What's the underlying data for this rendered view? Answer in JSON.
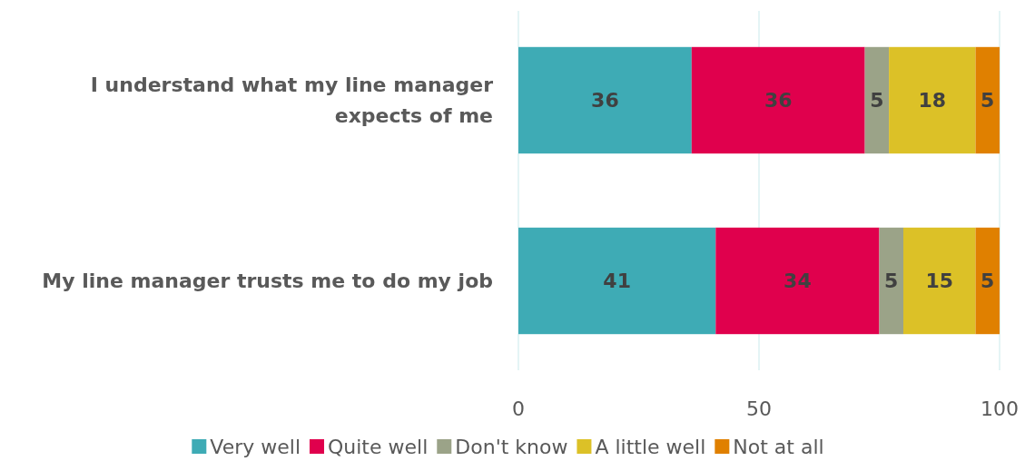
{
  "chart_data": {
    "type": "bar",
    "orientation": "horizontal",
    "stacked": true,
    "categories": [
      "I understand what my line manager expects of me",
      "My line manager trusts me to do my job"
    ],
    "series": [
      {
        "name": "Very well",
        "color": "#3eabb5",
        "values": [
          36,
          41
        ]
      },
      {
        "name": "Quite well",
        "color": "#e0004d",
        "values": [
          36,
          34
        ]
      },
      {
        "name": "Don't know",
        "color": "#9ba388",
        "values": [
          5,
          5
        ]
      },
      {
        "name": "A little well",
        "color": "#dcc127",
        "values": [
          18,
          15
        ]
      },
      {
        "name": "Not at all",
        "color": "#e08000",
        "values": [
          5,
          5
        ]
      }
    ],
    "xlim": [
      0,
      100
    ],
    "xticks": [
      0,
      50,
      100
    ],
    "grid": "x",
    "legend": "bottom",
    "data_labels": true
  }
}
